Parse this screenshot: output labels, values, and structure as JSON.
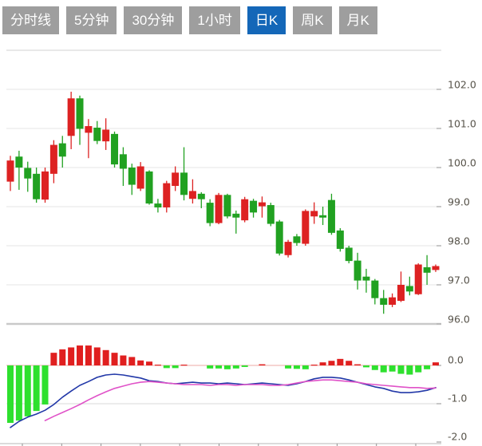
{
  "tabs": {
    "items": [
      {
        "label": "分时线",
        "active": false
      },
      {
        "label": "5分钟",
        "active": false
      },
      {
        "label": "30分钟",
        "active": false
      },
      {
        "label": "1小时",
        "active": false
      },
      {
        "label": "日K",
        "active": true
      },
      {
        "label": "周K",
        "active": false
      },
      {
        "label": "月K",
        "active": false
      }
    ],
    "active_bg": "#1467b8",
    "inactive_bg": "#9e9e9e",
    "text_color": "#ffffff"
  },
  "price_axis": {
    "labels": [
      "102.0",
      "101.0",
      "100.0",
      "99.0",
      "98.0",
      "97.0",
      "96.0"
    ],
    "values": [
      102,
      101,
      100,
      99,
      98,
      97,
      96
    ]
  },
  "macd_axis": {
    "labels": [
      "0.0",
      "-1.0",
      "-2.0"
    ],
    "values": [
      0,
      -1,
      -2
    ]
  },
  "chart_data": {
    "type": "candlestick+macd",
    "timeframe_selected": "日K",
    "price_panel": {
      "ylim": [
        95.9,
        103.0
      ],
      "gridlines": [
        102,
        101,
        100,
        99,
        98,
        97,
        96
      ],
      "grid": true,
      "candles": [
        {
          "o": 99.64,
          "h": 100.3,
          "l": 99.4,
          "c": 100.18
        },
        {
          "o": 100.28,
          "h": 100.43,
          "l": 99.43,
          "c": 100.0
        },
        {
          "o": 99.99,
          "h": 100.15,
          "l": 99.38,
          "c": 99.72
        },
        {
          "o": 99.84,
          "h": 100.0,
          "l": 99.1,
          "c": 99.19
        },
        {
          "o": 99.18,
          "h": 100.0,
          "l": 99.1,
          "c": 99.9
        },
        {
          "o": 99.84,
          "h": 100.7,
          "l": 99.6,
          "c": 100.58
        },
        {
          "o": 100.62,
          "h": 100.81,
          "l": 100.0,
          "c": 100.28
        },
        {
          "o": 100.81,
          "h": 101.94,
          "l": 100.47,
          "c": 101.77
        },
        {
          "o": 101.77,
          "h": 101.84,
          "l": 100.58,
          "c": 100.99
        },
        {
          "o": 100.89,
          "h": 101.24,
          "l": 100.24,
          "c": 101.06
        },
        {
          "o": 101.02,
          "h": 101.19,
          "l": 100.6,
          "c": 100.68
        },
        {
          "o": 100.67,
          "h": 101.26,
          "l": 100.45,
          "c": 100.97
        },
        {
          "o": 100.86,
          "h": 100.92,
          "l": 100.0,
          "c": 100.08
        },
        {
          "o": 100.34,
          "h": 100.52,
          "l": 99.53,
          "c": 99.97
        },
        {
          "o": 100.0,
          "h": 100.1,
          "l": 99.3,
          "c": 99.56
        },
        {
          "o": 99.46,
          "h": 100.14,
          "l": 99.4,
          "c": 100.03
        },
        {
          "o": 99.9,
          "h": 99.93,
          "l": 99.05,
          "c": 99.08
        },
        {
          "o": 99.08,
          "h": 99.2,
          "l": 98.85,
          "c": 98.98
        },
        {
          "o": 98.98,
          "h": 99.66,
          "l": 98.85,
          "c": 99.6
        },
        {
          "o": 99.53,
          "h": 100.03,
          "l": 99.4,
          "c": 99.87
        },
        {
          "o": 99.87,
          "h": 100.52,
          "l": 99.16,
          "c": 99.3
        },
        {
          "o": 99.2,
          "h": 99.7,
          "l": 99.08,
          "c": 99.4
        },
        {
          "o": 99.33,
          "h": 99.37,
          "l": 98.96,
          "c": 99.19
        },
        {
          "o": 99.1,
          "h": 99.19,
          "l": 98.5,
          "c": 98.58
        },
        {
          "o": 98.58,
          "h": 99.35,
          "l": 98.55,
          "c": 99.3
        },
        {
          "o": 99.3,
          "h": 99.33,
          "l": 98.7,
          "c": 98.75
        },
        {
          "o": 98.82,
          "h": 98.9,
          "l": 98.31,
          "c": 98.72
        },
        {
          "o": 98.65,
          "h": 99.25,
          "l": 98.6,
          "c": 99.19
        },
        {
          "o": 99.15,
          "h": 99.2,
          "l": 98.72,
          "c": 98.85
        },
        {
          "o": 99.01,
          "h": 99.26,
          "l": 98.72,
          "c": 99.11
        },
        {
          "o": 99.04,
          "h": 99.1,
          "l": 98.5,
          "c": 98.56
        },
        {
          "o": 98.62,
          "h": 98.66,
          "l": 97.75,
          "c": 97.8
        },
        {
          "o": 97.76,
          "h": 98.15,
          "l": 97.7,
          "c": 98.1
        },
        {
          "o": 98.24,
          "h": 98.3,
          "l": 98.0,
          "c": 98.07
        },
        {
          "o": 98.05,
          "h": 98.93,
          "l": 98.0,
          "c": 98.89
        },
        {
          "o": 98.75,
          "h": 99.11,
          "l": 98.56,
          "c": 98.89
        },
        {
          "o": 98.78,
          "h": 99.0,
          "l": 98.53,
          "c": 98.72
        },
        {
          "o": 99.17,
          "h": 99.33,
          "l": 98.28,
          "c": 98.33
        },
        {
          "o": 98.39,
          "h": 98.45,
          "l": 97.85,
          "c": 97.92
        },
        {
          "o": 97.95,
          "h": 98.0,
          "l": 97.55,
          "c": 97.61
        },
        {
          "o": 97.62,
          "h": 97.82,
          "l": 96.88,
          "c": 97.11
        },
        {
          "o": 97.21,
          "h": 97.41,
          "l": 96.8,
          "c": 97.11
        },
        {
          "o": 97.11,
          "h": 97.15,
          "l": 96.5,
          "c": 96.66
        },
        {
          "o": 96.66,
          "h": 96.87,
          "l": 96.26,
          "c": 96.49
        },
        {
          "o": 96.49,
          "h": 96.78,
          "l": 96.43,
          "c": 96.68
        },
        {
          "o": 96.59,
          "h": 97.34,
          "l": 96.56,
          "c": 97.0
        },
        {
          "o": 96.97,
          "h": 97.21,
          "l": 96.73,
          "c": 96.83
        },
        {
          "o": 96.76,
          "h": 97.55,
          "l": 96.74,
          "c": 97.52
        },
        {
          "o": 97.45,
          "h": 97.76,
          "l": 97.0,
          "c": 97.31
        },
        {
          "o": 97.38,
          "h": 97.52,
          "l": 97.33,
          "c": 97.48
        }
      ]
    },
    "macd_panel": {
      "ylim": [
        -2.1,
        0.6
      ],
      "gridlines": [
        0,
        -1,
        -2
      ],
      "histogram": [
        -1.5,
        -1.44,
        -1.33,
        -1.19,
        -1.02,
        0.33,
        0.42,
        0.47,
        0.52,
        0.52,
        0.47,
        0.4,
        0.33,
        0.26,
        0.22,
        0.13,
        0.1,
        0.02,
        -0.07,
        -0.07,
        0.02,
        0.0,
        0.0,
        -0.08,
        -0.08,
        -0.1,
        -0.08,
        -0.04,
        0.0,
        0.03,
        0.0,
        0.0,
        -0.08,
        -0.09,
        -0.1,
        0.02,
        0.08,
        0.12,
        0.17,
        0.12,
        0.03,
        -0.05,
        -0.12,
        -0.18,
        -0.16,
        -0.22,
        -0.24,
        -0.18,
        -0.1,
        0.08
      ],
      "dif": [
        -1.62,
        -1.46,
        -1.35,
        -1.27,
        -1.17,
        -1.02,
        -0.83,
        -0.67,
        -0.52,
        -0.42,
        -0.31,
        -0.25,
        -0.23,
        -0.25,
        -0.29,
        -0.33,
        -0.4,
        -0.42,
        -0.46,
        -0.48,
        -0.46,
        -0.44,
        -0.46,
        -0.46,
        -0.48,
        -0.46,
        -0.48,
        -0.5,
        -0.48,
        -0.46,
        -0.48,
        -0.5,
        -0.52,
        -0.48,
        -0.42,
        -0.35,
        -0.31,
        -0.31,
        -0.33,
        -0.38,
        -0.44,
        -0.5,
        -0.56,
        -0.6,
        -0.67,
        -0.71,
        -0.71,
        -0.69,
        -0.65,
        -0.58
      ],
      "dea": {
        "start_index": 4,
        "values": [
          -1.44,
          -1.33,
          -1.23,
          -1.13,
          -1.02,
          -0.9,
          -0.79,
          -0.69,
          -0.6,
          -0.54,
          -0.48,
          -0.44,
          -0.42,
          -0.44,
          -0.46,
          -0.48,
          -0.5,
          -0.5,
          -0.5,
          -0.52,
          -0.5,
          -0.5,
          -0.52,
          -0.5,
          -0.5,
          -0.5,
          -0.52,
          -0.52,
          -0.5,
          -0.46,
          -0.42,
          -0.4,
          -0.38,
          -0.38,
          -0.4,
          -0.42,
          -0.44,
          -0.48,
          -0.5,
          -0.52,
          -0.54,
          -0.56,
          -0.58,
          -0.58,
          -0.6,
          -0.59
        ]
      }
    },
    "colors": {
      "up": "#dd2222",
      "down": "#21a121",
      "hist_up": "#e01f1f",
      "hist_down": "#2ee02e",
      "dif_line": "#2238a8",
      "dea_line": "#e052c8",
      "grid": "#e4e4e4",
      "zero_line": "#ecaaa6",
      "axis_text": "#57534a"
    },
    "legend": "none",
    "x_axis_labels": "cropped (tick marks only)"
  }
}
